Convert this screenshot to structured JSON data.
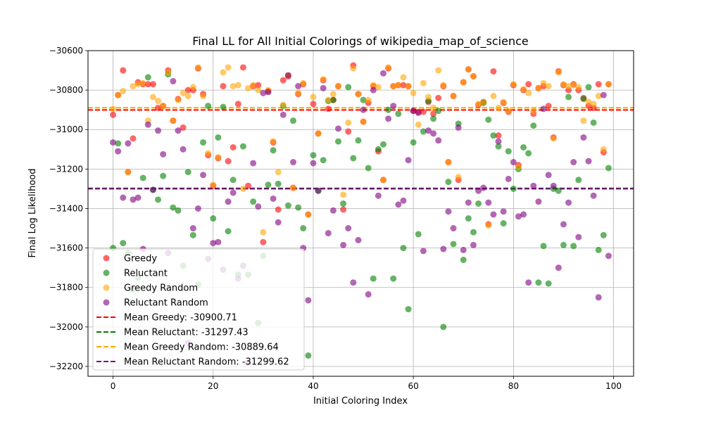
{
  "chart_data": {
    "type": "scatter",
    "title": "Final LL for All Initial Colorings of wikipedia_map_of_science",
    "xlabel": "Initial Coloring Index",
    "ylabel": "Final Log Likelihood",
    "xlim": [
      -5,
      104
    ],
    "ylim": [
      -32250,
      -30600
    ],
    "xticks": [
      0,
      20,
      40,
      60,
      80,
      100
    ],
    "yticks": [
      -30600,
      -30800,
      -31000,
      -31200,
      -31400,
      -31600,
      -31800,
      -32000,
      -32200
    ],
    "xtick_labels": [
      "0",
      "20",
      "40",
      "60",
      "80",
      "100"
    ],
    "ytick_labels": [
      "−30600",
      "−30800",
      "−31000",
      "−31200",
      "−31400",
      "−31600",
      "−31800",
      "−32000",
      "−32200"
    ],
    "grid": true,
    "legend_position": "lower-left",
    "series": [
      {
        "name": "Greedy",
        "color": "#ff0000",
        "x": [
          0,
          1,
          2,
          3,
          4,
          5,
          6,
          7,
          8,
          9,
          10,
          11,
          12,
          13,
          14,
          15,
          16,
          17,
          18,
          19,
          20,
          21,
          22,
          23,
          24,
          25,
          26,
          27,
          28,
          29,
          30,
          31,
          32,
          33,
          34,
          35,
          36,
          37,
          38,
          39,
          40,
          41,
          42,
          43,
          44,
          45,
          46,
          47,
          48,
          49,
          50,
          51,
          52,
          53,
          54,
          55,
          56,
          57,
          58,
          59,
          60,
          61,
          62,
          63,
          64,
          65,
          66,
          67,
          68,
          69,
          70,
          71,
          72,
          73,
          74,
          75,
          76,
          77,
          78,
          79,
          80,
          81,
          82,
          83,
          84,
          85,
          86,
          87,
          88,
          89,
          90,
          91,
          92,
          93,
          94,
          95,
          96,
          97,
          98,
          99
        ],
        "y": [
          -30925,
          -30825,
          -30700,
          -31215,
          -31045,
          -30760,
          -30770,
          -30770,
          -30770,
          -30890,
          -30880,
          -30700,
          -30955,
          -30845,
          -30990,
          -30800,
          -30800,
          -30690,
          -30820,
          -31130,
          -31285,
          -31145,
          -30780,
          -31160,
          -31090,
          -30870,
          -30685,
          -31285,
          -30780,
          -30775,
          -31570,
          -30805,
          -31065,
          -31405,
          -30750,
          -30730,
          -31295,
          -30820,
          -30770,
          -31430,
          -30870,
          -31020,
          -30750,
          -30895,
          -30850,
          -30780,
          -31405,
          -31010,
          -30675,
          -30820,
          -30960,
          -30865,
          -30780,
          -31110,
          -31255,
          -30690,
          -30780,
          -30775,
          -30775,
          -30780,
          -30905,
          -30910,
          -30910,
          -30860,
          -30920,
          -30840,
          -30780,
          -31165,
          -30830,
          -31255,
          -30760,
          -30695,
          -30730,
          -30875,
          -30860,
          -31480,
          -30705,
          -31030,
          -30865,
          -30910,
          -30775,
          -31180,
          -30800,
          -30770,
          -30920,
          -30790,
          -30780,
          -30880,
          -31040,
          -30705,
          -30775,
          -30800,
          -30770,
          -30800,
          -30840,
          -30880,
          -30890,
          -30770,
          -31115,
          -30770
        ]
      },
      {
        "name": "Reluctant",
        "color": "#008000",
        "x": [
          0,
          1,
          2,
          3,
          4,
          5,
          6,
          7,
          8,
          9,
          10,
          11,
          12,
          13,
          14,
          15,
          16,
          17,
          18,
          19,
          20,
          21,
          22,
          23,
          24,
          25,
          26,
          27,
          28,
          29,
          30,
          31,
          32,
          33,
          34,
          35,
          36,
          37,
          38,
          39,
          40,
          41,
          42,
          43,
          44,
          45,
          46,
          47,
          48,
          49,
          50,
          51,
          52,
          53,
          54,
          55,
          56,
          57,
          58,
          59,
          60,
          61,
          62,
          63,
          64,
          65,
          66,
          67,
          68,
          69,
          70,
          71,
          72,
          73,
          74,
          75,
          76,
          77,
          78,
          79,
          80,
          81,
          82,
          83,
          84,
          85,
          86,
          87,
          88,
          89,
          90,
          91,
          92,
          93,
          94,
          95,
          96,
          97,
          98,
          99
        ],
        "y": [
          -31600,
          -31070,
          -31575,
          -31625,
          -31810,
          -31750,
          -31245,
          -30735,
          -31305,
          -31355,
          -31235,
          -30720,
          -31395,
          -31410,
          -31690,
          -31215,
          -31535,
          -31785,
          -31065,
          -30880,
          -31450,
          -31040,
          -30885,
          -31515,
          -31255,
          -31735,
          -31085,
          -31735,
          -31365,
          -31980,
          -31640,
          -31280,
          -31105,
          -31275,
          -30880,
          -31385,
          -30955,
          -31395,
          -31500,
          -32145,
          -31130,
          -31310,
          -31155,
          -30855,
          -30850,
          -31060,
          -31375,
          -30785,
          -31145,
          -31055,
          -30850,
          -31195,
          -31755,
          -31100,
          -31075,
          -30900,
          -31755,
          -30920,
          -31600,
          -31910,
          -31065,
          -31530,
          -31010,
          -30855,
          -30945,
          -30905,
          -32000,
          -31265,
          -31580,
          -30970,
          -31660,
          -31450,
          -31520,
          -31375,
          -30865,
          -30950,
          -31030,
          -31085,
          -31475,
          -31110,
          -31300,
          -31200,
          -31090,
          -31120,
          -30980,
          -31775,
          -31590,
          -31780,
          -31300,
          -31310,
          -31585,
          -30835,
          -31590,
          -31255,
          -30845,
          -30785,
          -30965,
          -31610,
          -31535,
          -31195
        ]
      },
      {
        "name": "Greedy Random",
        "color": "#ffa500",
        "x": [
          0,
          1,
          2,
          3,
          4,
          5,
          6,
          7,
          8,
          9,
          10,
          11,
          12,
          13,
          14,
          15,
          16,
          17,
          18,
          19,
          20,
          21,
          22,
          23,
          24,
          25,
          26,
          27,
          28,
          29,
          30,
          31,
          32,
          33,
          34,
          35,
          36,
          37,
          38,
          39,
          40,
          41,
          42,
          43,
          44,
          45,
          46,
          47,
          48,
          49,
          50,
          51,
          52,
          53,
          54,
          55,
          56,
          57,
          58,
          59,
          60,
          61,
          62,
          63,
          64,
          65,
          66,
          67,
          68,
          69,
          70,
          71,
          72,
          73,
          74,
          75,
          76,
          77,
          78,
          79,
          80,
          81,
          82,
          83,
          84,
          85,
          86,
          87,
          88,
          89,
          90,
          91,
          92,
          93,
          94,
          95,
          96,
          97,
          98,
          99
        ],
        "y": [
          -30895,
          -30825,
          -30805,
          -31215,
          -30780,
          -30770,
          -30765,
          -30955,
          -30835,
          -30855,
          -30880,
          -30710,
          -30955,
          -30850,
          -30815,
          -30830,
          -30785,
          -30685,
          -30830,
          -31120,
          -31280,
          -31140,
          -30710,
          -30685,
          -30780,
          -30775,
          -31300,
          -30790,
          -30775,
          -30800,
          -31520,
          -30800,
          -31060,
          -31215,
          -30875,
          -30725,
          -31295,
          -30815,
          -30765,
          -31430,
          -30835,
          -31020,
          -30745,
          -30850,
          -30820,
          -30780,
          -31330,
          -30965,
          -30690,
          -30820,
          -30960,
          -30850,
          -30775,
          -30785,
          -31255,
          -30685,
          -30780,
          -30775,
          -30735,
          -30780,
          -30815,
          -30975,
          -30765,
          -30835,
          -30890,
          -30700,
          -30775,
          -31165,
          -30830,
          -31240,
          -30760,
          -30695,
          -30730,
          -30870,
          -30860,
          -31485,
          -30830,
          -30890,
          -30860,
          -30905,
          -30770,
          -31190,
          -30795,
          -30815,
          -30905,
          -30790,
          -30765,
          -30780,
          -31045,
          -30710,
          -30770,
          -30780,
          -30775,
          -30785,
          -30955,
          -30860,
          -30870,
          -30830,
          -31100,
          -30770
        ]
      },
      {
        "name": "Reluctant Random",
        "color": "#800080",
        "x": [
          0,
          1,
          2,
          3,
          4,
          5,
          6,
          7,
          8,
          9,
          10,
          11,
          12,
          13,
          14,
          15,
          16,
          17,
          18,
          19,
          20,
          21,
          22,
          23,
          24,
          25,
          26,
          27,
          28,
          29,
          30,
          31,
          32,
          33,
          34,
          35,
          36,
          37,
          38,
          39,
          40,
          41,
          42,
          43,
          44,
          45,
          46,
          47,
          48,
          49,
          50,
          51,
          52,
          53,
          54,
          55,
          56,
          57,
          58,
          59,
          60,
          61,
          62,
          63,
          64,
          65,
          66,
          67,
          68,
          69,
          70,
          71,
          72,
          73,
          74,
          75,
          76,
          77,
          78,
          79,
          80,
          81,
          82,
          83,
          84,
          85,
          86,
          87,
          88,
          89,
          90,
          91,
          92,
          93,
          94,
          95,
          96,
          97,
          98,
          99
        ],
        "y": [
          -31065,
          -31110,
          -31345,
          -31070,
          -31355,
          -31345,
          -31605,
          -30975,
          -31305,
          -31005,
          -31125,
          -31625,
          -30755,
          -31005,
          -31100,
          -32080,
          -31500,
          -31400,
          -31230,
          -31655,
          -31575,
          -31570,
          -31710,
          -31365,
          -31320,
          -31755,
          -31690,
          -32180,
          -31170,
          -31390,
          -30815,
          -30810,
          -31350,
          -31470,
          -30925,
          -30725,
          -31165,
          -30780,
          -31600,
          -31865,
          -31170,
          -31310,
          -30790,
          -31525,
          -31410,
          -30995,
          -31585,
          -31500,
          -31775,
          -31560,
          -30900,
          -31835,
          -30800,
          -31335,
          -30715,
          -30945,
          -30880,
          -31380,
          -31360,
          -31155,
          -30905,
          -30915,
          -31615,
          -31005,
          -31020,
          -31055,
          -31605,
          -31415,
          -31500,
          -30990,
          -31610,
          -31370,
          -31585,
          -31310,
          -31295,
          -31370,
          -31430,
          -31060,
          -31415,
          -31250,
          -31165,
          -31440,
          -31430,
          -31775,
          -31285,
          -31365,
          -30895,
          -31230,
          -31285,
          -31700,
          -31480,
          -31370,
          -31165,
          -31545,
          -31040,
          -31160,
          -31335,
          -31850,
          -30825,
          -31640
        ]
      }
    ],
    "mean_lines": [
      {
        "label": "Mean Greedy: -30900.71",
        "value": -30900.71,
        "color": "#ff0000"
      },
      {
        "label": "Mean Reluctant: -31297.43",
        "value": -31297.43,
        "color": "#008000"
      },
      {
        "label": "Mean Greedy Random: -30889.64",
        "value": -30889.64,
        "color": "#ffa500"
      },
      {
        "label": "Mean Reluctant Random: -31299.62",
        "value": -31299.62,
        "color": "#800080"
      }
    ]
  }
}
